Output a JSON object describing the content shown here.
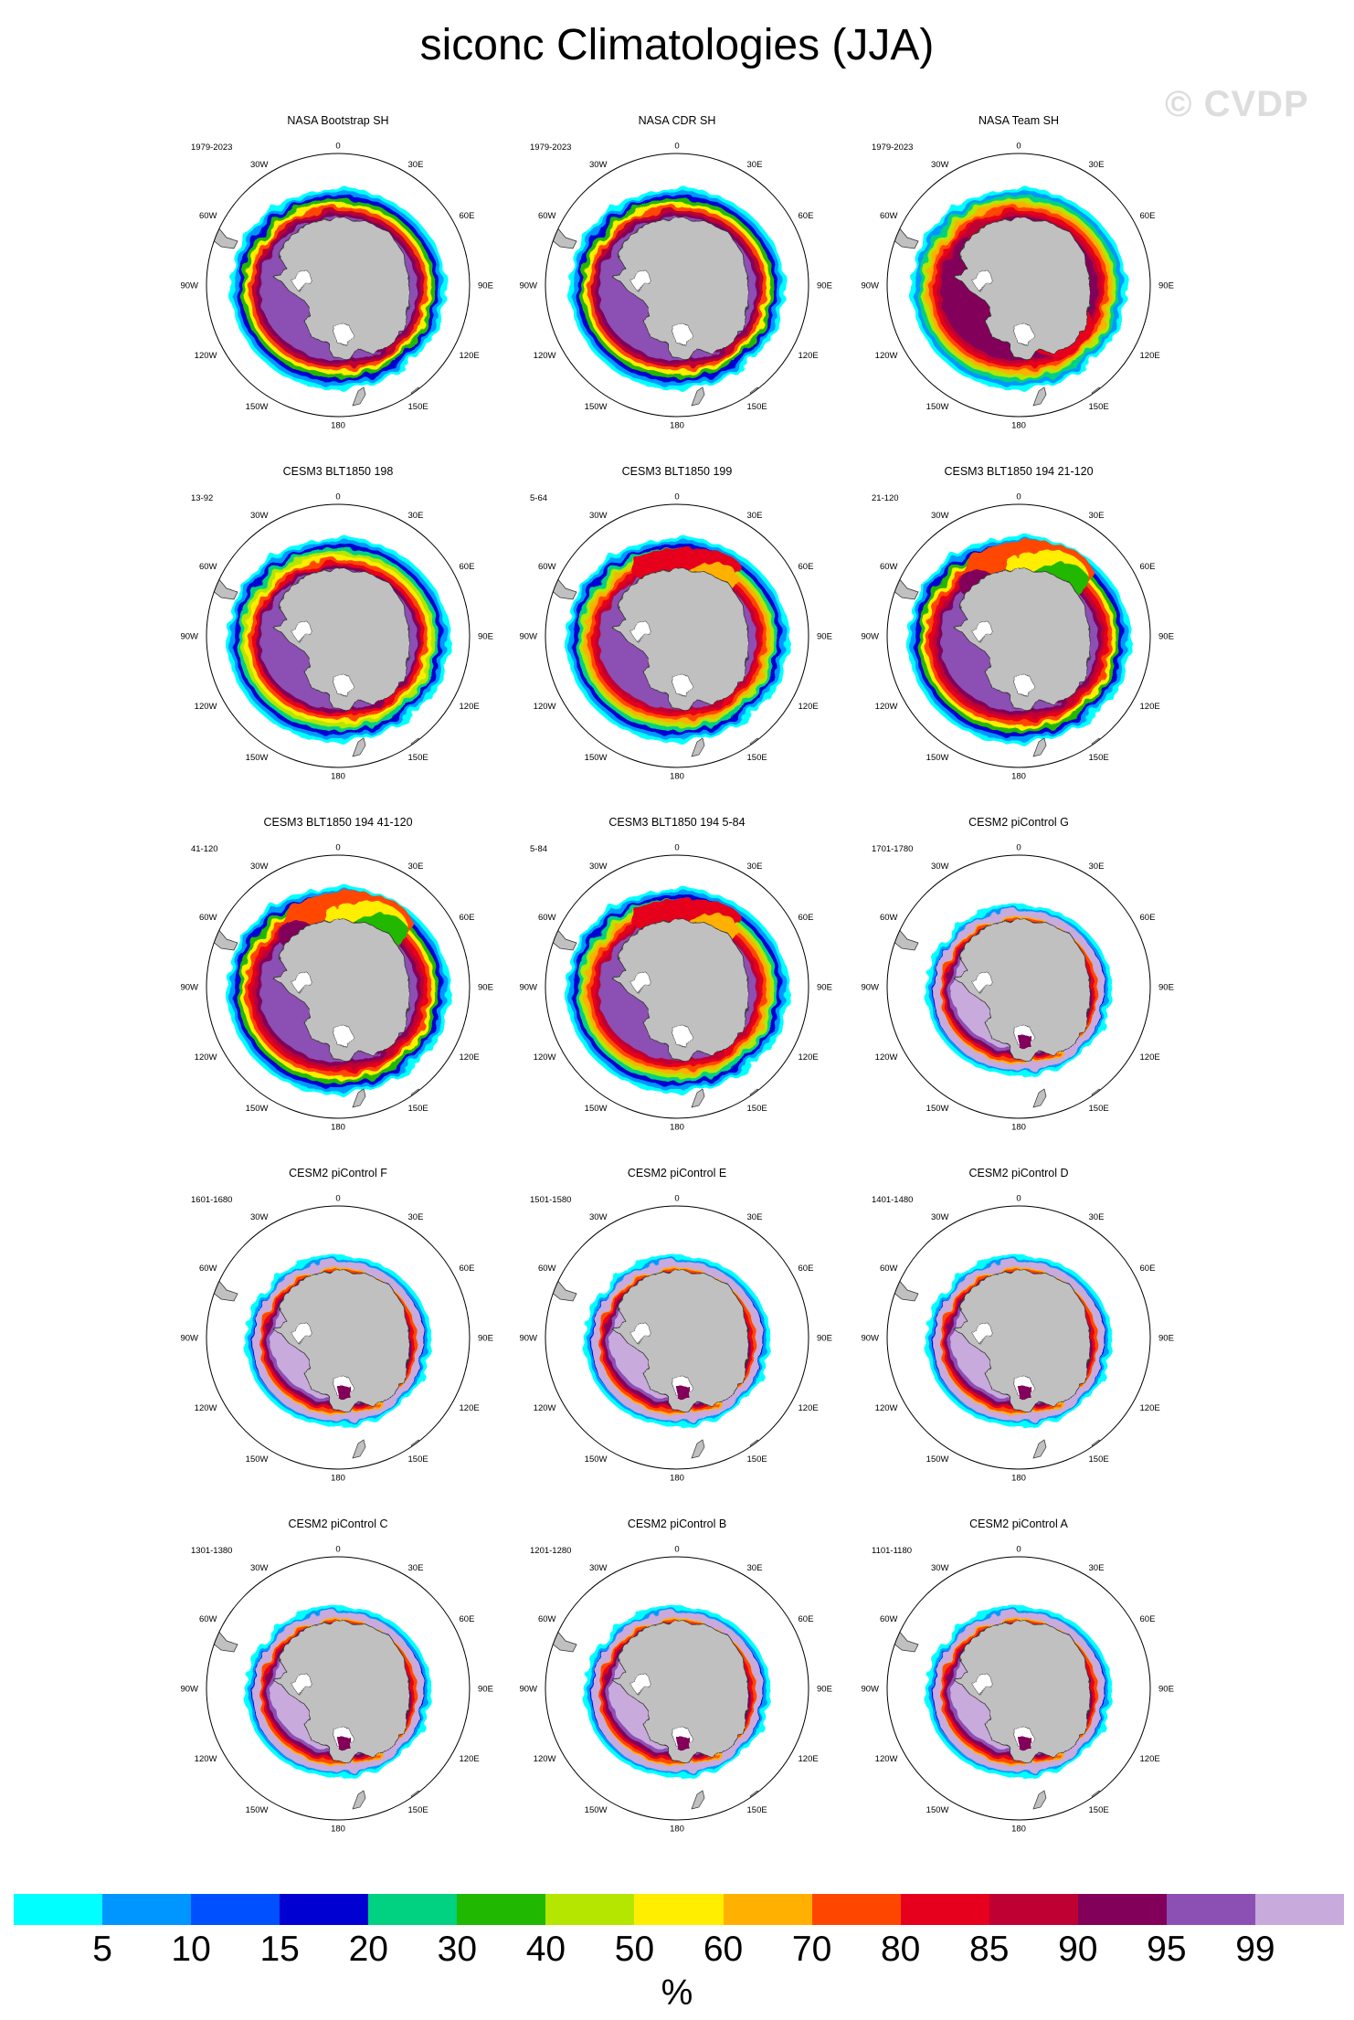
{
  "figure": {
    "title": "siconc Climatologies (JJA)",
    "watermark": "© CVDP"
  },
  "longitude_labels": [
    {
      "text": "0",
      "deg": 0
    },
    {
      "text": "30E",
      "deg": 30
    },
    {
      "text": "60E",
      "deg": 60
    },
    {
      "text": "90E",
      "deg": 90
    },
    {
      "text": "120E",
      "deg": 120
    },
    {
      "text": "150E",
      "deg": 150
    },
    {
      "text": "180",
      "deg": 180
    },
    {
      "text": "150W",
      "deg": 210
    },
    {
      "text": "120W",
      "deg": 240
    },
    {
      "text": "90W",
      "deg": 270
    },
    {
      "text": "60W",
      "deg": 300
    },
    {
      "text": "30W",
      "deg": 330
    }
  ],
  "panels": [
    {
      "title": "NASA Bootstrap SH",
      "years": "1979-2023",
      "style": "obs_a"
    },
    {
      "title": "NASA CDR SH",
      "years": "1979-2023",
      "style": "obs_a"
    },
    {
      "title": "NASA Team SH",
      "years": "1979-2023",
      "style": "obs_team"
    },
    {
      "title": "CESM3 BLT1850 198",
      "years": "13-92",
      "style": "cesm3_a"
    },
    {
      "title": "CESM3 BLT1850 199",
      "years": "5-64",
      "style": "cesm3_b"
    },
    {
      "title": "CESM3 BLT1850 194 21-120",
      "years": "21-120",
      "style": "cesm3_c"
    },
    {
      "title": "CESM3 BLT1850 194 41-120",
      "years": "41-120",
      "style": "cesm3_c"
    },
    {
      "title": "CESM3 BLT1850 194 5-84",
      "years": "5-84",
      "style": "cesm3_b"
    },
    {
      "title": "CESM2 piControl G",
      "years": "1701-1780",
      "style": "cesm2"
    },
    {
      "title": "CESM2 piControl F",
      "years": "1601-1680",
      "style": "cesm2"
    },
    {
      "title": "CESM2 piControl E",
      "years": "1501-1580",
      "style": "cesm2"
    },
    {
      "title": "CESM2 piControl D",
      "years": "1401-1480",
      "style": "cesm2"
    },
    {
      "title": "CESM2 piControl C",
      "years": "1301-1380",
      "style": "cesm2"
    },
    {
      "title": "CESM2 piControl B",
      "years": "1201-1280",
      "style": "cesm2"
    },
    {
      "title": "CESM2 piControl A",
      "years": "1101-1180",
      "style": "cesm2"
    }
  ],
  "colorbar": {
    "colors": [
      "#00ffff",
      "#0096ff",
      "#0050ff",
      "#0000d2",
      "#00d282",
      "#20b800",
      "#b4e600",
      "#ffee00",
      "#ffb000",
      "#ff4600",
      "#e6001e",
      "#be0032",
      "#82005a",
      "#8c50b4",
      "#c8aadc"
    ],
    "labels": [
      "5",
      "10",
      "15",
      "20",
      "30",
      "40",
      "50",
      "60",
      "70",
      "80",
      "85",
      "90",
      "95",
      "99"
    ],
    "units": "%"
  }
}
